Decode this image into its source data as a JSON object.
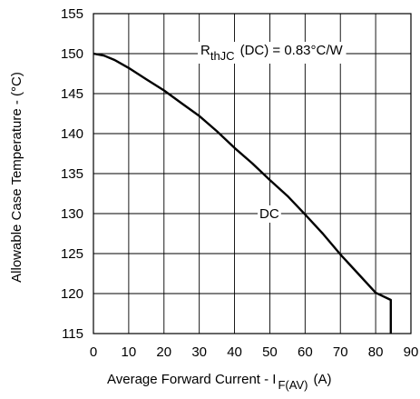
{
  "chart_data": {
    "type": "line",
    "xlabel": "Average Forward Current - I",
    "xlabel_subscript": "F(AV)",
    "xlabel_unit": "(A)",
    "ylabel": "Allowable Case Temperature - (°C)",
    "xlim": [
      0,
      90
    ],
    "ylim": [
      115,
      155
    ],
    "x_ticks": [
      "0",
      "10",
      "20",
      "30",
      "40",
      "50",
      "60",
      "70",
      "80",
      "90"
    ],
    "y_ticks": [
      "115",
      "120",
      "125",
      "130",
      "135",
      "140",
      "145",
      "150",
      "155"
    ],
    "grid": true,
    "series": [
      {
        "name": "DC",
        "x": [
          0,
          3,
          6,
          10,
          15,
          20,
          25,
          30,
          35,
          40,
          45,
          50,
          55,
          60,
          65,
          70,
          75,
          80,
          84.3,
          84.3
        ],
        "y": [
          150,
          149.75,
          149.2,
          148.2,
          146.8,
          145.4,
          143.8,
          142.2,
          140.3,
          138.2,
          136.3,
          134.2,
          132.2,
          129.9,
          127.5,
          124.9,
          122.5,
          120.1,
          119.2,
          115
        ]
      }
    ],
    "annotations": {
      "rthjc_symbol": "R",
      "rthjc_subscript": "thJC",
      "rthjc_value": "(DC) = 0.83°C/W",
      "curve_label": "DC"
    }
  }
}
